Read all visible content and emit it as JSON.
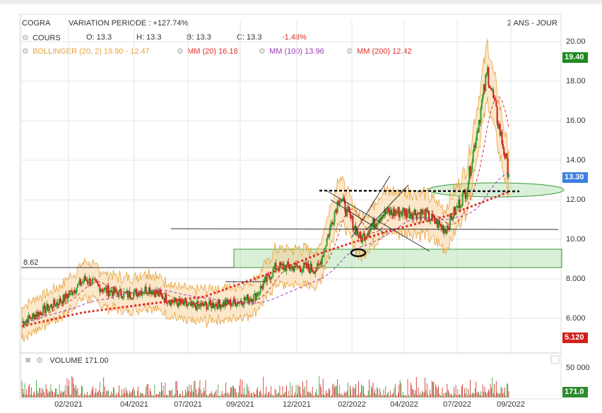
{
  "header": {
    "symbol": "COGRA",
    "variation": "VARIATION PERIODE : +127.74%",
    "period": "2 ANS - JOUR"
  },
  "cours": {
    "label": "COURS",
    "open": "O: 13.3",
    "high": "H: 13.3",
    "low": "B: 13.3",
    "close": "C: 13.3",
    "change": "-1.48%"
  },
  "indicators": {
    "bollinger": "BOLLINGER (20, 2) 19.90 - 12.47",
    "mm20": "MM (20) 16.18",
    "mm100": "MM (100) 13.96",
    "mm200": "MM (200) 12.42",
    "colors": {
      "bollinger": "#e8a33a",
      "mm20": "#e0302a",
      "mm100": "#9b3bb5",
      "mm200": "#e0302a"
    }
  },
  "volume": {
    "label": "VOLUME 171.00",
    "tick": "50 000",
    "badge": "171.0",
    "badge_color": "#2e8b2e"
  },
  "annotations": {
    "level_label": "8.62"
  },
  "badges": {
    "top": {
      "text": "19.40",
      "color": "#1f8a1f"
    },
    "current": {
      "text": "13.30",
      "color": "#3d7fe0"
    },
    "bottom": {
      "text": "5.120",
      "color": "#d0201c"
    }
  },
  "chart_data": {
    "type": "line",
    "title": "COGRA",
    "xlabel": "",
    "ylabel": "",
    "ylim": [
      5,
      20
    ],
    "y_ticks": [
      "20.00",
      "18.00",
      "16.00",
      "14.00",
      "12.00",
      "10.00",
      "8.000",
      "6.000"
    ],
    "x_ticks": [
      "02/2021",
      "04/2021",
      "07/2021",
      "09/2021",
      "12/2021",
      "02/2022",
      "04/2022",
      "07/2022",
      "09/2022"
    ],
    "grid": true,
    "series": [
      {
        "name": "COURS",
        "x": [
          "09/2020",
          "11/2020",
          "12/2020",
          "01/2021",
          "02/2021",
          "03/2021",
          "04/2021",
          "05/2021",
          "06/2021",
          "07/2021",
          "08/2021",
          "09/2021",
          "10/2021",
          "11/2021",
          "12/2021",
          "01/2022",
          "02/2022",
          "03/2022",
          "04/2022",
          "05/2022",
          "06/2022",
          "07/2022",
          "08/2022",
          "09/2022"
        ],
        "values": [
          5.8,
          6.4,
          7.0,
          8.0,
          7.4,
          7.2,
          7.5,
          6.9,
          6.6,
          6.7,
          6.8,
          7.1,
          8.6,
          8.6,
          8.5,
          12.2,
          10.0,
          11.3,
          11.4,
          11.3,
          10.5,
          12.5,
          18.5,
          13.3
        ]
      },
      {
        "name": "MM (200)",
        "x": [
          "09/2020",
          "01/2021",
          "05/2021",
          "09/2021",
          "12/2021",
          "02/2022",
          "05/2022",
          "07/2022",
          "09/2022"
        ],
        "values": [
          5.6,
          6.3,
          6.7,
          7.1,
          8.2,
          9.4,
          10.4,
          11.2,
          12.4
        ]
      }
    ],
    "volume_max": 50000
  }
}
